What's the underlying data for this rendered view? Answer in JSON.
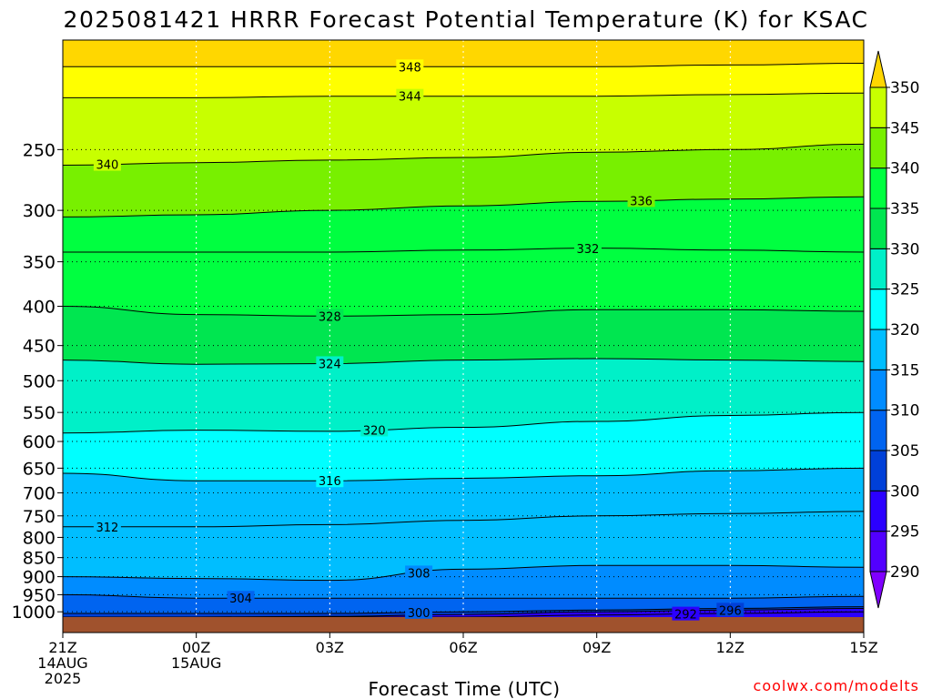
{
  "title": "2025081421 HRRR Forecast Potential Temperature (K) for KSAC",
  "xlabel": "Forecast Time (UTC)",
  "credit": "coolwx.com/modelts",
  "chart_data": {
    "type": "heatmap",
    "title": "2025081421 HRRR Forecast Potential Temperature (K) for KSAC",
    "xlabel": "Forecast Time (UTC)",
    "ylabel": "",
    "x_hours": [
      0,
      3,
      6,
      9,
      12,
      15,
      18
    ],
    "x_ticks": [
      {
        "hour": 0,
        "lines": [
          "21Z",
          "14AUG",
          "2025"
        ]
      },
      {
        "hour": 3,
        "lines": [
          "00Z",
          "15AUG"
        ]
      },
      {
        "hour": 6,
        "lines": [
          "03Z"
        ]
      },
      {
        "hour": 9,
        "lines": [
          "06Z"
        ]
      },
      {
        "hour": 12,
        "lines": [
          "09Z"
        ]
      },
      {
        "hour": 15,
        "lines": [
          "12Z"
        ]
      },
      {
        "hour": 18,
        "lines": [
          "15Z"
        ]
      }
    ],
    "xlim": [
      0,
      18
    ],
    "y_axis": "pressure (hPa), log scale, decreasing upward",
    "y_ticks": [
      250,
      300,
      350,
      400,
      450,
      500,
      550,
      600,
      650,
      700,
      750,
      800,
      850,
      900,
      950,
      1000
    ],
    "ylim": [
      1016,
      180
    ],
    "surface_pressure": 1016,
    "colorbar": {
      "levels": [
        290,
        295,
        300,
        305,
        310,
        315,
        320,
        325,
        330,
        335,
        340,
        345,
        350
      ],
      "labels": [
        "290",
        "295",
        "300",
        "305",
        "310",
        "315",
        "320",
        "325",
        "330",
        "335",
        "340",
        "345",
        "350"
      ],
      "colors": [
        "#8000ff",
        "#5200ff",
        "#2b00ff",
        "#0040d8",
        "#0064f0",
        "#008cff",
        "#00beff",
        "#00ffff",
        "#00f0c8",
        "#00e650",
        "#00ff40",
        "#78f000",
        "#c8ff00",
        "#ffff00",
        "#ffd700"
      ]
    },
    "contours": [
      {
        "value": 348,
        "p": [
          195,
          195,
          195,
          195,
          195,
          194,
          193
        ],
        "label": "348",
        "label_hour": 7.8
      },
      {
        "value": 344,
        "p": [
          214,
          214,
          213,
          213,
          213,
          212,
          211
        ],
        "label": "344",
        "label_hour": 7.8
      },
      {
        "value": 340,
        "p": [
          262,
          260,
          258,
          256,
          252,
          250,
          246
        ],
        "label": "340",
        "label_hour": 1.0
      },
      {
        "value": 336,
        "p": [
          306,
          304,
          300,
          296,
          292,
          290,
          288
        ],
        "label": "336",
        "label_hour": 13.0
      },
      {
        "value": 332,
        "p": [
          340,
          340,
          340,
          338,
          336,
          338,
          340
        ],
        "label": "332",
        "label_hour": 11.8
      },
      {
        "value": 328,
        "p": [
          400,
          410,
          412,
          410,
          404,
          404,
          406
        ],
        "label": "328",
        "label_hour": 6.0
      },
      {
        "value": 324,
        "p": [
          470,
          476,
          475,
          470,
          468,
          470,
          472
        ],
        "label": "324",
        "label_hour": 6.0
      },
      {
        "value": 320,
        "p": [
          585,
          580,
          582,
          575,
          565,
          555,
          550
        ],
        "label": "320",
        "label_hour": 7.0
      },
      {
        "value": 316,
        "p": [
          660,
          675,
          675,
          670,
          665,
          655,
          650
        ],
        "label": "316",
        "label_hour": 6.0
      },
      {
        "value": 312,
        "p": [
          775,
          775,
          770,
          760,
          750,
          745,
          740
        ],
        "label": "312",
        "label_hour": 1.0
      },
      {
        "value": 308,
        "p": [
          900,
          905,
          910,
          880,
          870,
          870,
          875
        ],
        "label": "308",
        "label_hour": 8.0
      },
      {
        "value": 304,
        "p": [
          950,
          960,
          960,
          960,
          960,
          960,
          955
        ],
        "label": "304",
        "label_hour": 4.0
      },
      {
        "value": 300,
        "p": [
          1005,
          1005,
          1005,
          1000,
          995,
          990,
          985
        ],
        "label": "300",
        "label_hour": 8.0
      },
      {
        "value": 296,
        "p": [
          1016,
          1016,
          1014,
          1008,
          1000,
          995,
          990
        ],
        "label": "296",
        "label_hour": 15.0
      },
      {
        "value": 292,
        "p": [
          1016,
          1016,
          1016,
          1016,
          1010,
          1005,
          1000
        ],
        "label": "292",
        "label_hour": 14.0
      }
    ],
    "grid": "dotted",
    "legend": "colorbar right"
  }
}
